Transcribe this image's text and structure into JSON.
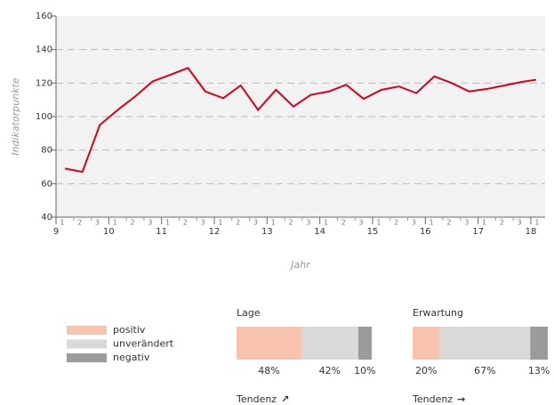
{
  "chart_data": [
    {
      "type": "line",
      "y_label": "Indikatorpunkte",
      "x_label": "Jahr",
      "x": [
        9.17,
        9.5,
        9.83,
        10.17,
        10.5,
        10.83,
        11.17,
        11.5,
        11.83,
        12.17,
        12.5,
        12.83,
        13.17,
        13.5,
        13.83,
        14.17,
        14.5,
        14.83,
        15.17,
        15.5,
        15.83,
        16.17,
        16.5,
        16.83,
        17.17,
        17.5,
        17.83,
        18.1
      ],
      "series": [
        {
          "color": "#d6001c",
          "values": [
            69,
            67,
            95,
            104,
            112,
            121,
            125,
            129,
            115,
            111,
            118.6,
            104,
            116,
            106,
            113,
            115,
            119,
            110.6,
            116,
            118,
            114,
            124,
            120,
            115,
            116.5,
            118.6,
            120.7,
            122
          ]
        }
      ],
      "xlim": [
        9,
        18.27
      ],
      "xticks": [
        9,
        10,
        11,
        12,
        13,
        14,
        15,
        16,
        17,
        18
      ],
      "minor_tick_labels": [
        "1",
        "2",
        "3"
      ],
      "ylim": [
        40,
        160
      ],
      "yticks": [
        40,
        60,
        80,
        100,
        120,
        140,
        160
      ],
      "grid": true
    },
    {
      "type": "stacked_bar",
      "categories": [
        "Lage",
        "Erwartung"
      ],
      "series": [
        {
          "name": "positiv",
          "color": "#f7c3ad",
          "values": [
            48,
            20
          ],
          "value_labels": [
            "48%",
            "20%"
          ]
        },
        {
          "name": "unverändert",
          "color": "#d9d9d9",
          "values": [
            42,
            67
          ],
          "value_labels": [
            "42%",
            "67%"
          ]
        },
        {
          "name": "negativ",
          "color": "#9b9b9b",
          "values": [
            10,
            13
          ],
          "value_labels": [
            "10%",
            "13%"
          ]
        }
      ],
      "tendency_label": "Tendenz",
      "tendency_arrows": [
        "↗",
        "→"
      ],
      "xlim": [
        0,
        100
      ]
    }
  ]
}
